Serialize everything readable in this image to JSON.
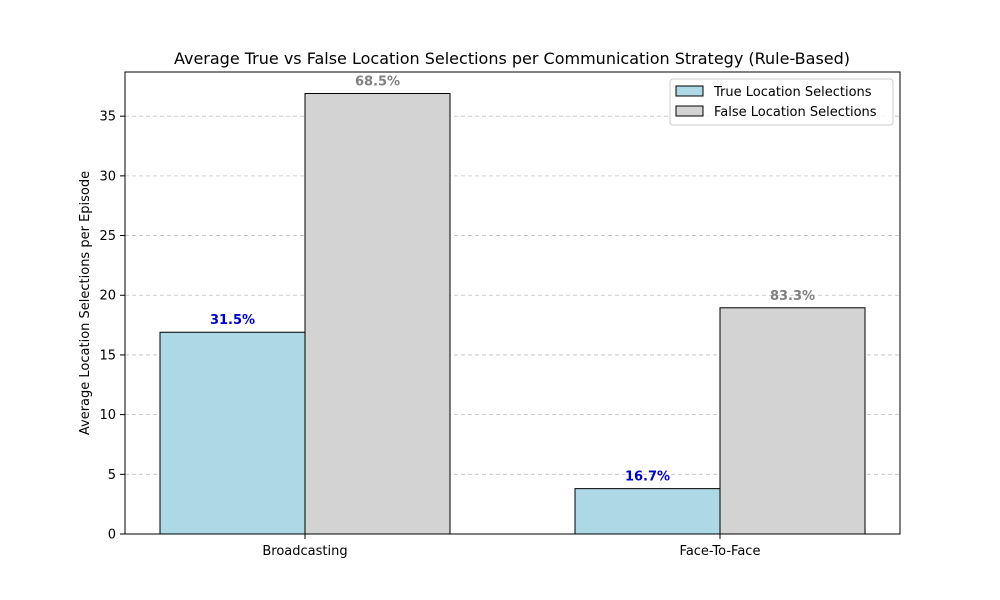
{
  "chart_data": {
    "type": "bar",
    "title": "Average True vs False Location Selections per Communication Strategy (Rule-Based)",
    "xlabel": "",
    "ylabel": "Average Location Selections per Episode",
    "categories": [
      "Broadcasting",
      "Face-To-Face"
    ],
    "series": [
      {
        "name": "True Location Selections",
        "values": [
          16.9,
          3.8
        ],
        "labels": [
          "31.5%",
          "16.7%"
        ],
        "color": "#add8e6",
        "label_color": "#0000cd"
      },
      {
        "name": "False Location Selections",
        "values": [
          36.9,
          18.95
        ],
        "labels": [
          "68.5%",
          "83.3%"
        ],
        "color": "#d3d3d3",
        "label_color": "#808080"
      }
    ],
    "ylim": [
      0,
      38.7
    ],
    "yticks": [
      0,
      5,
      10,
      15,
      20,
      25,
      30,
      35
    ],
    "grid": "y-dashed",
    "legend": "top-right"
  }
}
